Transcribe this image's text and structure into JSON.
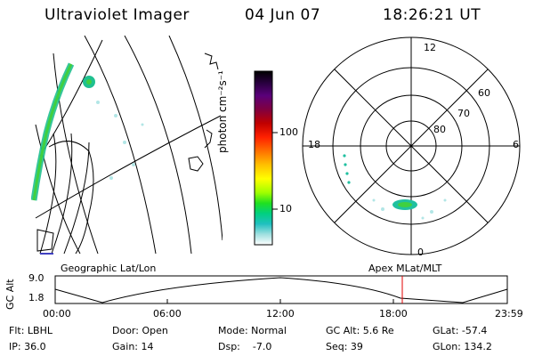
{
  "header": {
    "title": "Ultraviolet Imager",
    "date": "04 Jun 07",
    "time": "18:26:21 UT"
  },
  "colorbar": {
    "label": "photon cm⁻²s⁻¹",
    "ticks": [
      "100",
      "10"
    ],
    "colors": [
      "#000000",
      "#2a0040",
      "#5a007a",
      "#800040",
      "#c00000",
      "#ff2000",
      "#ff7000",
      "#ffc000",
      "#ffff00",
      "#a0ff00",
      "#20e020",
      "#00d080",
      "#20c0c0",
      "#a0e0e0",
      "#ffffff"
    ]
  },
  "polar_plot": {
    "mlt_labels": [
      "12",
      "18",
      "6",
      "0"
    ],
    "lat_labels": [
      "60",
      "70",
      "80"
    ]
  },
  "timeline": {
    "left_label": "Geographic Lat/Lon",
    "right_label": "Apex MLat/MLT",
    "axis_title": "GC Alt",
    "y_ticks": [
      "9.0",
      "1.8"
    ],
    "x_ticks": [
      "00:00",
      "06:00",
      "12:00",
      "18:00",
      "23:59"
    ],
    "current_marker_time": "18:26"
  },
  "info": {
    "filter": "Flt: LBHL",
    "ip": "IP: 36.0",
    "door": "Door: Open",
    "gain": "Gain: 14",
    "mode": "Mode: Normal",
    "dsp": "Dsp:    -7.0",
    "gc_alt": "GC Alt: 5.6 Re",
    "seq": "Seq: 39",
    "glat": "GLat: -57.4",
    "glon": "GLon: 134.2"
  }
}
